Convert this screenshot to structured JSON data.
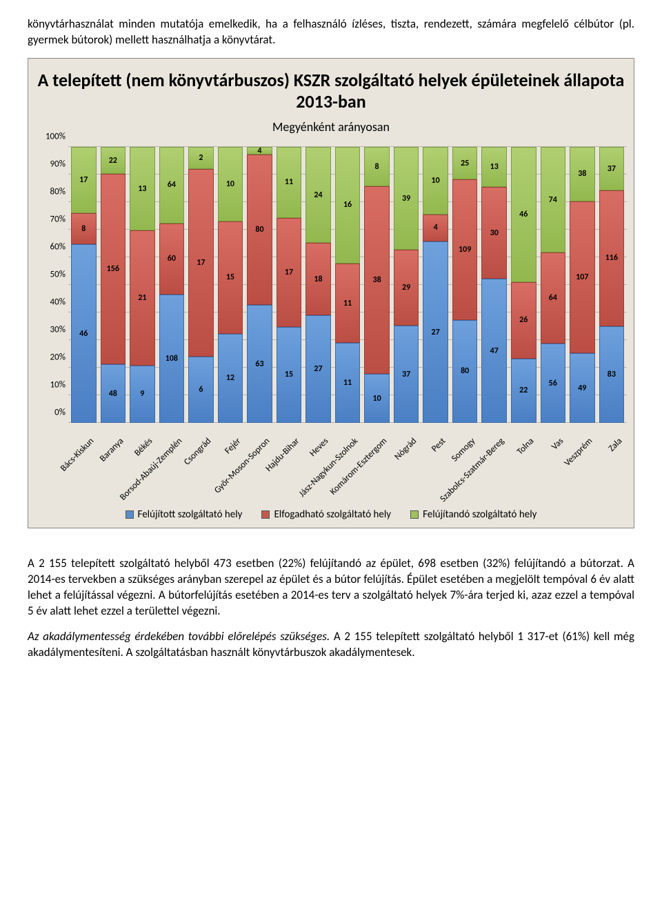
{
  "intro_text": "könyvtárhasználat minden mutatója emelkedik, ha a felhasználó ízléses, tiszta, rendezett, számára megfelelő célbútor (pl. gyermek bútorok) mellett használhatja a könyvtárat.",
  "chart": {
    "type": "stacked-bar-100",
    "title": "A telepített (nem könyvtárbuszos) KSZR szolgáltató helyek épületeinek állapota 2013-ban",
    "subtitle": "Megyénként arányosan",
    "background_color": "#e9e5dc",
    "grid_color": "#b8b4aa",
    "ylim": [
      0,
      100
    ],
    "ytick_step": 10,
    "yticks": [
      "0%",
      "10%",
      "20%",
      "30%",
      "40%",
      "50%",
      "60%",
      "70%",
      "80%",
      "90%",
      "100%"
    ],
    "series": [
      {
        "key": "blue",
        "label": "Felújított szolgáltató hely",
        "color": "#5a8ccc"
      },
      {
        "key": "red",
        "label": "Elfogadható szolgáltató hely",
        "color": "#c25a50"
      },
      {
        "key": "green",
        "label": "Felújítandó szolgáltató hely",
        "color": "#9fc15e"
      }
    ],
    "categories": [
      "Bács-Kiskun",
      "Baranya",
      "Békés",
      "Borsod-Abaúj-Zemplén",
      "Csongrád",
      "Fejér",
      "Győr-Moson-Sopron",
      "Hajdu-Bihar",
      "Heves",
      "Jász-Nagykun-Szolnok",
      "Komárom-Esztergom",
      "Nógrád",
      "Pest",
      "Somogy",
      "Szabolcs-Szatmár-Bereg",
      "Tolna",
      "Vas",
      "Veszprém",
      "Zala"
    ],
    "data": {
      "blue": [
        46,
        48,
        9,
        108,
        6,
        12,
        63,
        15,
        27,
        11,
        10,
        37,
        27,
        80,
        47,
        22,
        56,
        49,
        83
      ],
      "red": [
        8,
        156,
        21,
        60,
        17,
        15,
        80,
        17,
        18,
        11,
        38,
        29,
        4,
        109,
        30,
        26,
        64,
        107,
        116
      ],
      "green": [
        17,
        22,
        13,
        64,
        2,
        10,
        4,
        11,
        24,
        16,
        8,
        39,
        10,
        25,
        13,
        46,
        74,
        38,
        37
      ]
    },
    "legend": {
      "blue": "Felújított szolgáltató hely",
      "red": "Elfogadható szolgáltató hely",
      "green": "Felújítandó szolgáltató hely"
    }
  },
  "para2": "A 2 155 telepített szolgáltató helyből 473 esetben (22%) felújítandó az épület, 698 esetben (32%) felújítandó a bútorzat. A 2014-es tervekben a szükséges arányban szerepel az épület és a bútor felújítás. Épület esetében a megjelölt tempóval 6 év alatt lehet a felújítással végezni. A bútorfelújítás esetében a 2014-es terv a szolgáltató helyek 7%-ára terjed ki, azaz ezzel a tempóval 5 év alatt lehet ezzel a területtel végezni.",
  "para3_lead": "Az akadálymentesség érdekében további előrelépés szükséges.",
  "para3_rest": " A 2 155 telepített szolgáltató helyből 1 317-et (61%) kell még akadálymentesíteni. A szolgáltatásban használt könyvtárbuszok akadálymentesek."
}
